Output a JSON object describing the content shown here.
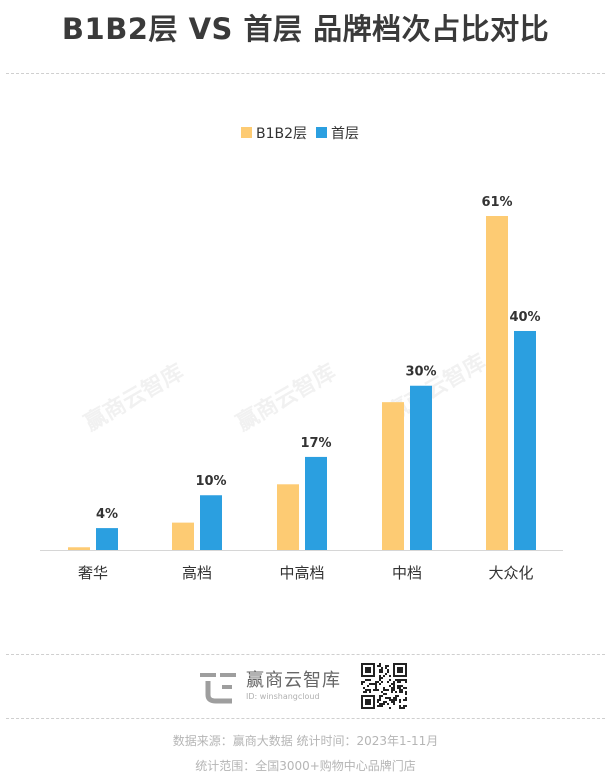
{
  "title": "B1B2层 VS 首层 品牌档次占比对比",
  "watermark": "赢商云智库",
  "chart_data": {
    "type": "bar",
    "categories": [
      "奢华",
      "高档",
      "中高档",
      "中档",
      "大众化"
    ],
    "series": [
      {
        "name": "B1B2层",
        "values": [
          0.5,
          5,
          12,
          27,
          61
        ],
        "color": "#FDCB73",
        "labeled": [
          null,
          null,
          null,
          null,
          "61%"
        ]
      },
      {
        "name": "首层",
        "values": [
          4,
          10,
          17,
          30,
          40
        ],
        "color": "#2B9FE0",
        "labeled": [
          "4%",
          "10%",
          "17%",
          "30%",
          "40%"
        ]
      }
    ],
    "ylim": [
      0,
      61
    ],
    "legend_position": "top-center",
    "grid": false
  },
  "footer": {
    "brand_name": "赢商云智库",
    "brand_id": "ID: winshangcloud",
    "source": "数据来源：赢商大数据   统计时间：2023年1-11月",
    "scope": "统计范围：全国3000+购物中心品牌门店"
  },
  "colors": {
    "accent_orange": "#FDCB73",
    "accent_blue": "#2B9FE0",
    "logo_gray": "#9e9e9e"
  }
}
